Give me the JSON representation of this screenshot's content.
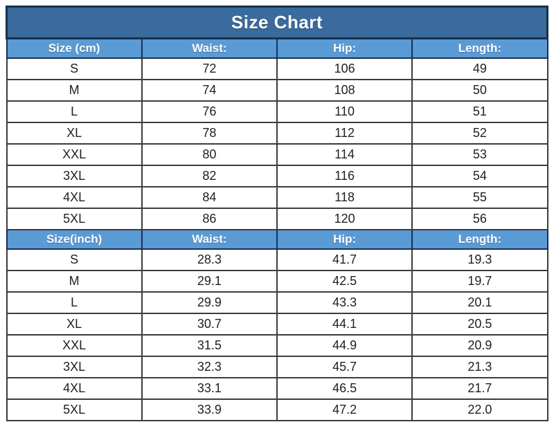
{
  "colors": {
    "title_bg": "#3A6B9C",
    "header_bg": "#5B9BD5",
    "header_text": "#FFFFFF",
    "navy_border": "#16304F",
    "cell_border": "#3B3B3B",
    "cell_text": "#1F1F1F",
    "page_bg": "#FFFFFF"
  },
  "chart_data": {
    "type": "table",
    "title": "Size Chart",
    "sections": [
      {
        "unit": "cm",
        "headers": [
          "Size (cm)",
          "Waist:",
          "Hip:",
          "Length:"
        ],
        "rows": [
          [
            "S",
            "72",
            "106",
            "49"
          ],
          [
            "M",
            "74",
            "108",
            "50"
          ],
          [
            "L",
            "76",
            "110",
            "51"
          ],
          [
            "XL",
            "78",
            "112",
            "52"
          ],
          [
            "XXL",
            "80",
            "114",
            "53"
          ],
          [
            "3XL",
            "82",
            "116",
            "54"
          ],
          [
            "4XL",
            "84",
            "118",
            "55"
          ],
          [
            "5XL",
            "86",
            "120",
            "56"
          ]
        ]
      },
      {
        "unit": "inch",
        "headers": [
          "Size(inch)",
          "Waist:",
          "Hip:",
          "Length:"
        ],
        "rows": [
          [
            "S",
            "28.3",
            "41.7",
            "19.3"
          ],
          [
            "M",
            "29.1",
            "42.5",
            "19.7"
          ],
          [
            "L",
            "29.9",
            "43.3",
            "20.1"
          ],
          [
            "XL",
            "30.7",
            "44.1",
            "20.5"
          ],
          [
            "XXL",
            "31.5",
            "44.9",
            "20.9"
          ],
          [
            "3XL",
            "32.3",
            "45.7",
            "21.3"
          ],
          [
            "4XL",
            "33.1",
            "46.5",
            "21.7"
          ],
          [
            "5XL",
            "33.9",
            "47.2",
            "22.0"
          ]
        ]
      }
    ]
  }
}
